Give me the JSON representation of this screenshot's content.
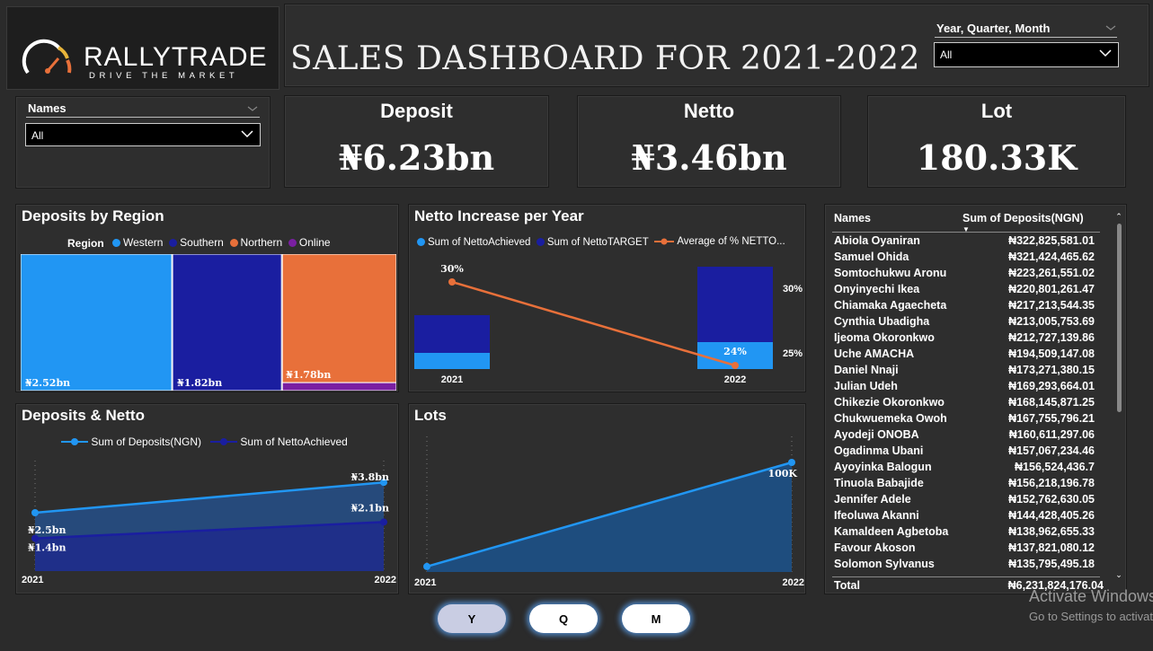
{
  "logo": {
    "name": "RALLYTRADE",
    "tagline": "DRIVE THE MARKET"
  },
  "page_title": "SALES DASHBOARD FOR 2021-2022",
  "filters": {
    "date": {
      "label": "Year, Quarter, Month",
      "value": "All"
    },
    "names": {
      "label": "Names",
      "value": "All"
    }
  },
  "kpis": {
    "deposit": {
      "title": "Deposit",
      "value": "₦6.23bn"
    },
    "netto": {
      "title": "Netto",
      "value": "₦3.46bn"
    },
    "lot": {
      "title": "Lot",
      "value": "180.33K"
    }
  },
  "colors": {
    "western": "#2196f3",
    "southern": "#1a1ea0",
    "northern": "#e8703a",
    "online": "#7a1fa2",
    "panel": "#2e2e2e"
  },
  "chart_data": [
    {
      "type": "bar",
      "title": "Deposits by Region",
      "legend_title": "Region",
      "categories": [
        "Western",
        "Southern",
        "Northern",
        "Online"
      ],
      "values": [
        2.52,
        1.82,
        1.78,
        0.11
      ],
      "labels": [
        "₦2.52bn",
        "₦1.82bn",
        "₦1.78bn",
        ""
      ]
    },
    {
      "type": "bar",
      "title": "Netto Increase per Year",
      "categories": [
        "2021",
        "2022"
      ],
      "series": [
        {
          "name": "Sum of  NettoAchieved",
          "values": [
            0.3,
            0.5
          ]
        },
        {
          "name": "Sum of NettoTARGET",
          "values": [
            1.0,
            1.9
          ]
        },
        {
          "name": "Average of % NETTO...",
          "values": [
            30,
            24
          ]
        }
      ],
      "point_labels": [
        "30%",
        "24%"
      ],
      "y2_ticks": [
        "30%",
        "25%"
      ]
    },
    {
      "type": "area",
      "title": "Deposits & Netto",
      "categories": [
        "2021",
        "2022"
      ],
      "series": [
        {
          "name": "Sum of  Deposits(NGN)",
          "values": [
            2.5,
            3.8
          ]
        },
        {
          "name": "Sum of  NettoAchieved",
          "values": [
            1.4,
            2.1
          ]
        }
      ],
      "point_labels": {
        "deposits": [
          "₦2.5bn",
          "₦3.8bn"
        ],
        "netto": [
          "₦1.4bn",
          "₦2.1bn"
        ]
      }
    },
    {
      "type": "area",
      "title": "Lots",
      "categories": [
        "2021",
        "2022"
      ],
      "values": [
        5,
        100
      ],
      "point_label": "100K"
    }
  ],
  "table": {
    "headers": {
      "name": "Names",
      "value": "Sum of Deposits(NGN)"
    },
    "rows": [
      [
        "Abiola Oyaniran",
        "₦322,825,581.01"
      ],
      [
        "Samuel Ohida",
        "₦321,424,465.62"
      ],
      [
        "Somtochukwu Aronu",
        "₦223,261,551.02"
      ],
      [
        "Onyinyechi Ikea",
        "₦220,801,261.47"
      ],
      [
        "Chiamaka Agaecheta",
        "₦217,213,544.35"
      ],
      [
        "Cynthia Ubadigha",
        "₦213,005,753.69"
      ],
      [
        "Ijeoma Okoronkwo",
        "₦212,727,139.86"
      ],
      [
        "Uche AMACHA",
        "₦194,509,147.08"
      ],
      [
        "Daniel Nnaji",
        "₦173,271,380.15"
      ],
      [
        "Julian Udeh",
        "₦169,293,664.01"
      ],
      [
        "Chikezie Okoronkwo",
        "₦168,145,871.25"
      ],
      [
        "Chukwuemeka Owoh",
        "₦167,755,796.21"
      ],
      [
        "Ayodeji ONOBA",
        "₦160,611,297.06"
      ],
      [
        "Ogadinma Ubani",
        "₦157,067,234.46"
      ],
      [
        "Ayoyinka Balogun",
        "₦156,524,436.7"
      ],
      [
        "Tinuola Babajide",
        "₦156,218,196.78"
      ],
      [
        "Jennifer Adele",
        "₦152,762,630.05"
      ],
      [
        "Ifeoluwa Akanni",
        "₦144,428,405.26"
      ],
      [
        "Kamaldeen Agbetoba",
        "₦138,962,655.33"
      ],
      [
        "Favour Akoson",
        "₦137,821,080.12"
      ],
      [
        "Solomon Sylvanus",
        "₦135,795,495.18"
      ]
    ],
    "total": {
      "label": "Total",
      "value": "₦6,231,824,176.04"
    }
  },
  "buttons": {
    "year": "Y",
    "quarter": "Q",
    "month": "M"
  },
  "watermark": {
    "line1": "Activate Windows",
    "line2": "Go to Settings to activate Windows."
  }
}
